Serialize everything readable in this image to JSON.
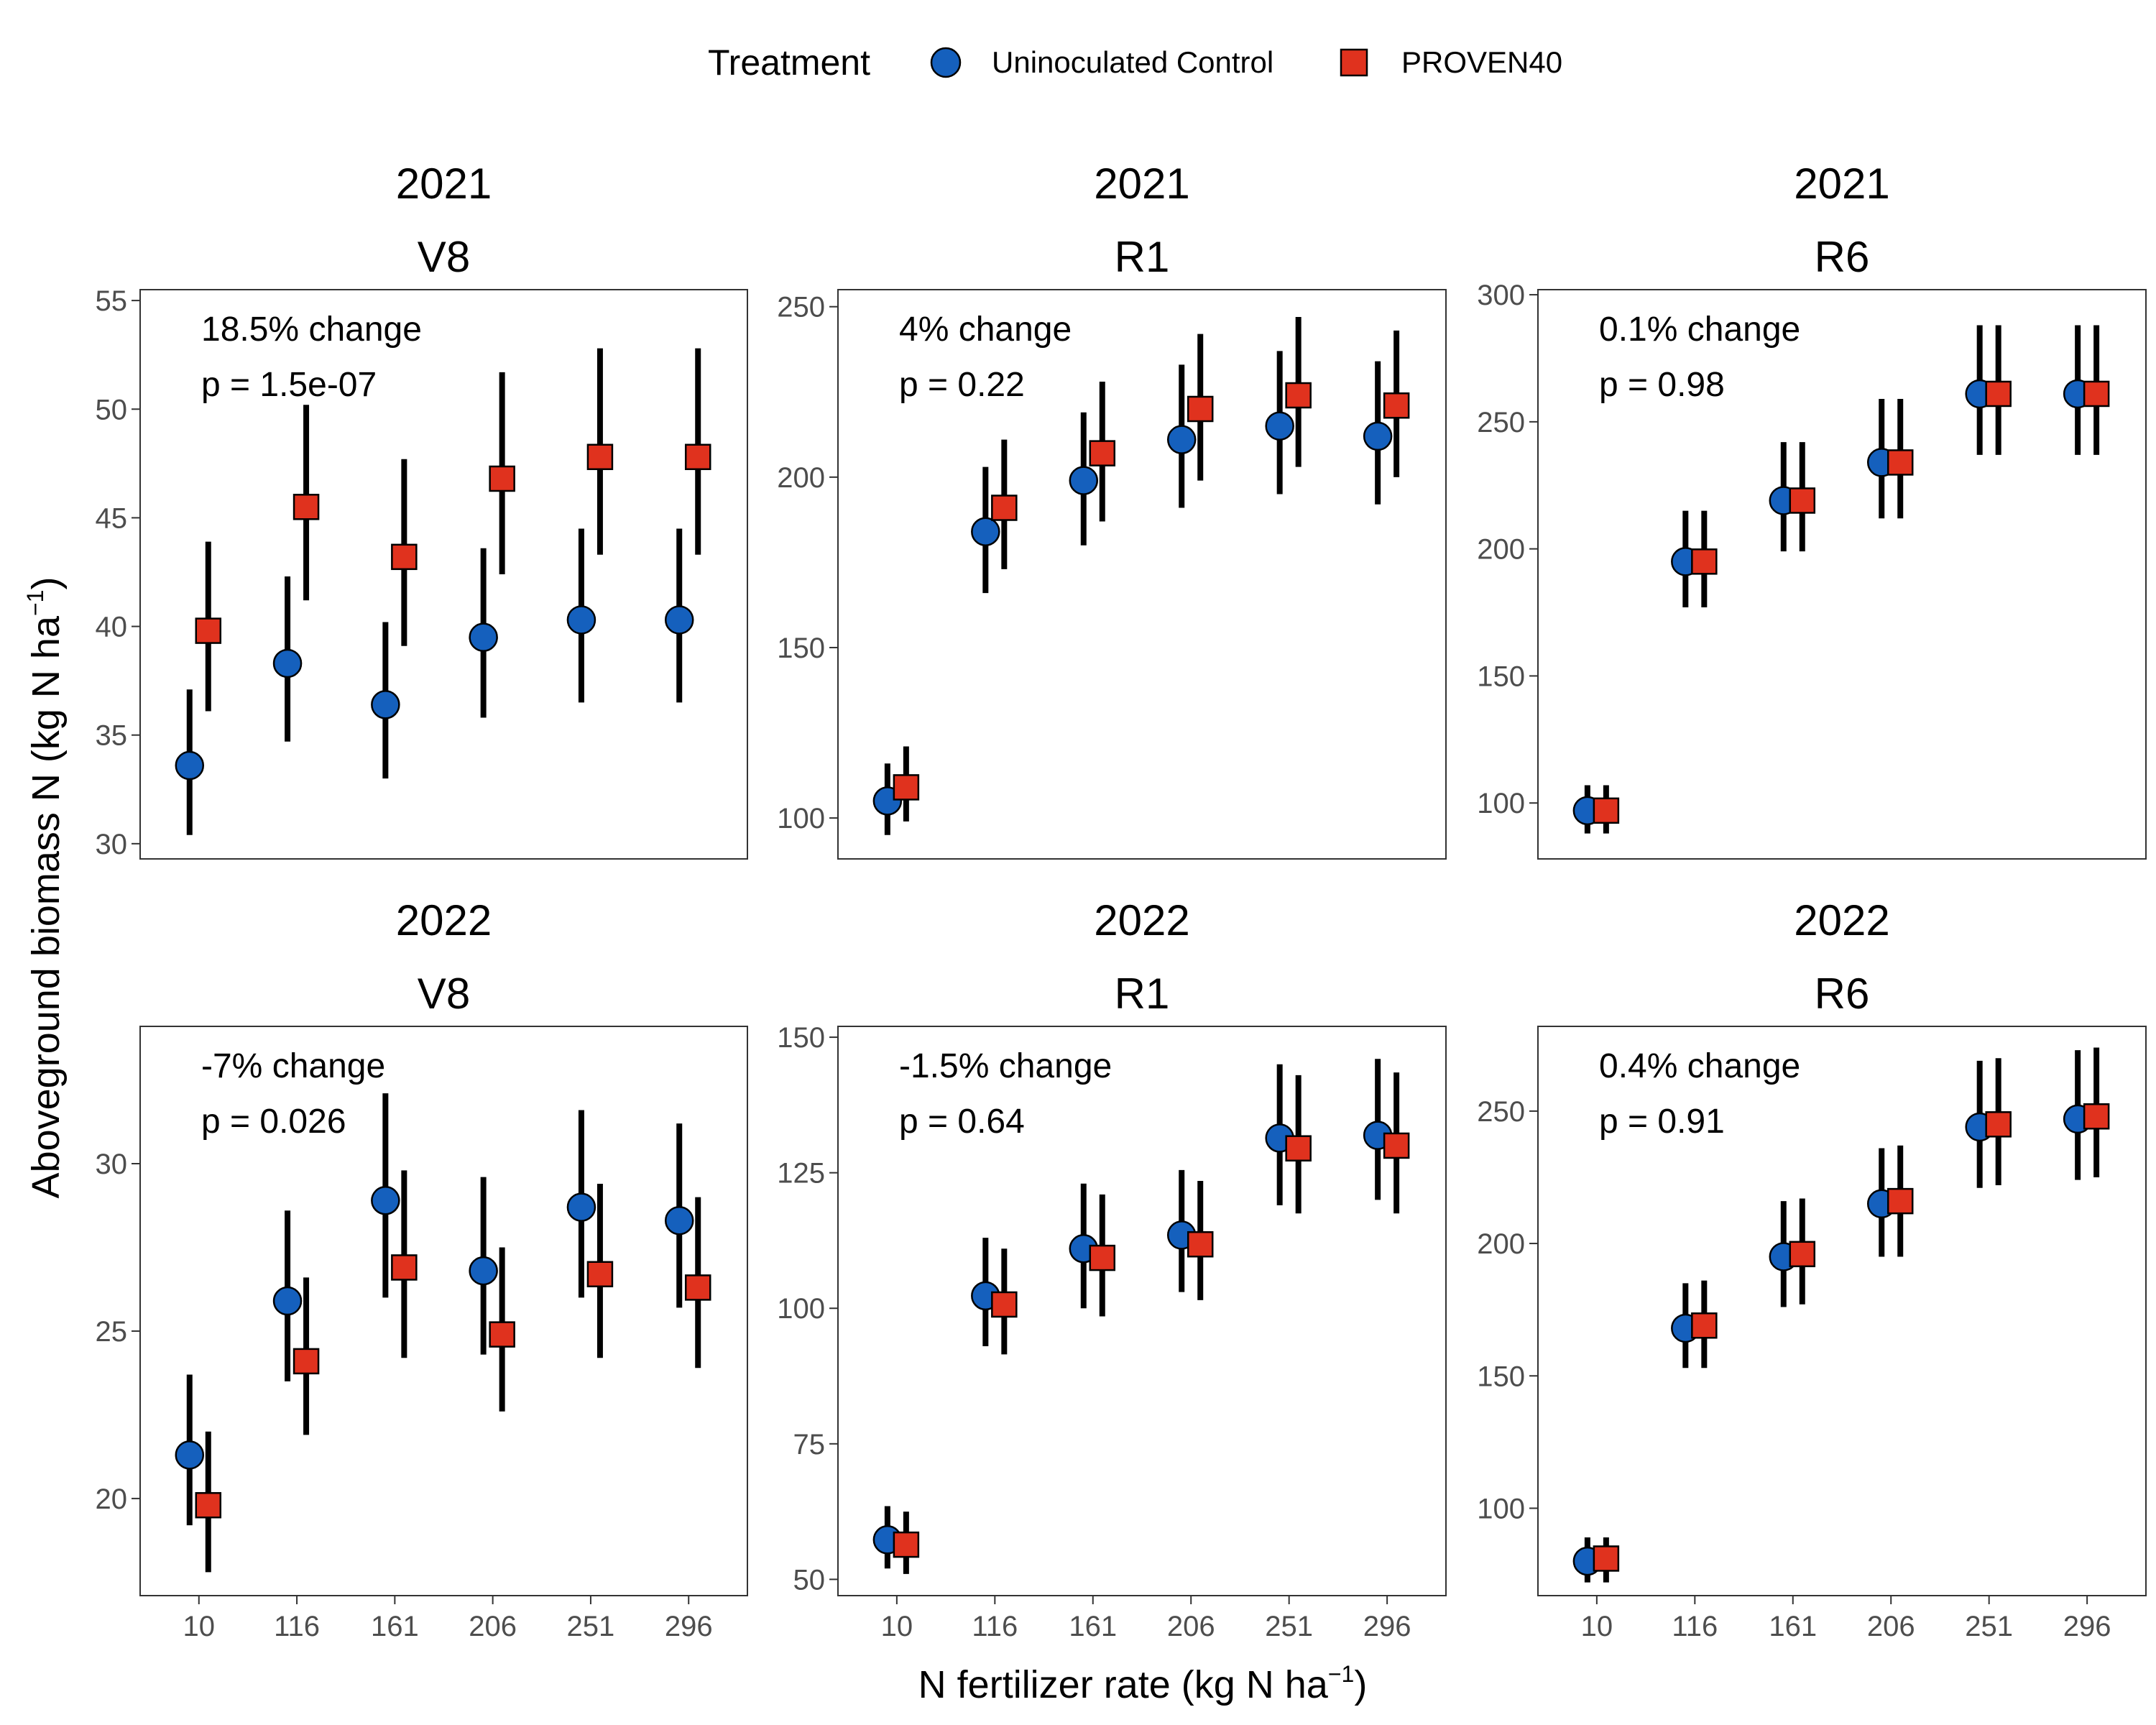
{
  "legend": {
    "title": "Treatment",
    "items": [
      {
        "label": "Uninoculated Control",
        "color": "#1560bd",
        "shape": "circle"
      },
      {
        "label": "PROVEN40",
        "color": "#e0321e",
        "shape": "square"
      }
    ]
  },
  "axes": {
    "x_title": "N fertilizer rate (kg N ha",
    "x_sup": "−1",
    "x_close": ")",
    "y_title": "Aboveground biomass N (kg N  ha",
    "y_sup": "−1",
    "y_close": ")"
  },
  "chart_data": [
    {
      "type": "scatter",
      "year": "2021",
      "stage": "V8",
      "annotation": {
        "change": "18.5% change",
        "p": "p = 1.5e-07"
      },
      "categories": [
        "10",
        "116",
        "161",
        "206",
        "251",
        "296"
      ],
      "ylim": [
        29.3,
        55.5
      ],
      "yticks": [
        30,
        35,
        40,
        45,
        50,
        55
      ],
      "series": [
        {
          "name": "Uninoculated Control",
          "values": [
            33.6,
            38.3,
            36.4,
            39.5,
            40.3,
            40.3
          ],
          "lower": [
            30.4,
            34.7,
            33.0,
            35.8,
            36.5,
            36.5
          ],
          "upper": [
            37.1,
            42.3,
            40.2,
            43.6,
            44.5,
            44.5
          ]
        },
        {
          "name": "PROVEN40",
          "values": [
            39.8,
            45.5,
            43.2,
            46.8,
            47.8,
            47.8
          ],
          "lower": [
            36.1,
            41.2,
            39.1,
            42.4,
            43.3,
            43.3
          ],
          "upper": [
            43.9,
            50.2,
            47.7,
            51.7,
            52.8,
            52.8
          ]
        }
      ]
    },
    {
      "type": "scatter",
      "year": "2021",
      "stage": "R1",
      "annotation": {
        "change": "4% change",
        "p": "p = 0.22"
      },
      "categories": [
        "10",
        "116",
        "161",
        "206",
        "251",
        "296"
      ],
      "ylim": [
        88,
        255
      ],
      "yticks": [
        100,
        150,
        200,
        250
      ],
      "series": [
        {
          "name": "Uninoculated Control",
          "values": [
            105,
            184,
            199,
            211,
            215,
            212
          ],
          "lower": [
            95,
            166,
            180,
            191,
            195,
            192
          ],
          "upper": [
            116,
            203,
            219,
            233,
            237,
            234
          ]
        },
        {
          "name": "PROVEN40",
          "values": [
            109,
            191,
            207,
            220,
            224,
            221
          ],
          "lower": [
            99,
            173,
            187,
            199,
            203,
            200
          ],
          "upper": [
            121,
            211,
            228,
            242,
            247,
            243
          ]
        }
      ]
    },
    {
      "type": "scatter",
      "year": "2021",
      "stage": "R6",
      "annotation": {
        "change": "0.1% change",
        "p": "p = 0.98"
      },
      "categories": [
        "10",
        "116",
        "161",
        "206",
        "251",
        "296"
      ],
      "ylim": [
        78,
        302
      ],
      "yticks": [
        100,
        150,
        200,
        250,
        300
      ],
      "series": [
        {
          "name": "Uninoculated Control",
          "values": [
            97,
            195,
            219,
            234,
            261,
            261
          ],
          "lower": [
            88,
            177,
            199,
            212,
            237,
            237
          ],
          "upper": [
            107,
            215,
            242,
            259,
            288,
            288
          ]
        },
        {
          "name": "PROVEN40",
          "values": [
            97,
            195,
            219,
            234,
            261,
            261
          ],
          "lower": [
            88,
            177,
            199,
            212,
            237,
            237
          ],
          "upper": [
            107,
            215,
            242,
            259,
            288,
            288
          ]
        }
      ]
    },
    {
      "type": "scatter",
      "year": "2022",
      "stage": "V8",
      "annotation": {
        "change": "-7% change",
        "p": "p = 0.026"
      },
      "categories": [
        "10",
        "116",
        "161",
        "206",
        "251",
        "296"
      ],
      "ylim": [
        17.1,
        34.1
      ],
      "yticks": [
        20,
        25,
        30
      ],
      "series": [
        {
          "name": "Uninoculated Control",
          "values": [
            21.3,
            25.9,
            28.9,
            26.8,
            28.7,
            28.3
          ],
          "lower": [
            19.2,
            23.5,
            26.0,
            24.3,
            26.0,
            25.7
          ],
          "upper": [
            23.7,
            28.6,
            32.1,
            29.6,
            31.6,
            31.2
          ]
        },
        {
          "name": "PROVEN40",
          "values": [
            19.8,
            24.1,
            26.9,
            24.9,
            26.7,
            26.3
          ],
          "lower": [
            17.8,
            21.9,
            24.2,
            22.6,
            24.2,
            23.9
          ],
          "upper": [
            22.0,
            26.6,
            29.8,
            27.5,
            29.4,
            29.0
          ]
        }
      ]
    },
    {
      "type": "scatter",
      "year": "2022",
      "stage": "R1",
      "annotation": {
        "change": "-1.5% change",
        "p": "p = 0.64"
      },
      "categories": [
        "10",
        "116",
        "161",
        "206",
        "251",
        "296"
      ],
      "ylim": [
        47,
        152
      ],
      "yticks": [
        50,
        75,
        100,
        125,
        150
      ],
      "series": [
        {
          "name": "Uninoculated Control",
          "values": [
            57.3,
            102.3,
            111.0,
            113.5,
            131.4,
            131.9
          ],
          "lower": [
            52,
            93,
            100,
            103,
            119,
            120
          ],
          "upper": [
            63.5,
            113,
            123,
            125.5,
            145,
            146
          ]
        },
        {
          "name": "PROVEN40",
          "values": [
            56.4,
            100.7,
            109.3,
            111.8,
            129.5,
            130.0
          ],
          "lower": [
            51,
            91.5,
            98.5,
            101.5,
            117.5,
            117.5
          ],
          "upper": [
            62.5,
            111,
            121,
            123.5,
            143,
            143.5
          ]
        }
      ]
    },
    {
      "type": "scatter",
      "year": "2022",
      "stage": "R6",
      "annotation": {
        "change": "0.4% change",
        "p": "p = 0.91"
      },
      "categories": [
        "10",
        "116",
        "161",
        "206",
        "251",
        "296"
      ],
      "ylim": [
        67,
        282
      ],
      "yticks": [
        100,
        150,
        200,
        250
      ],
      "series": [
        {
          "name": "Uninoculated Control",
          "values": [
            80,
            168,
            195,
            215,
            244,
            247
          ],
          "lower": [
            72,
            153,
            176,
            195,
            221,
            224
          ],
          "upper": [
            89,
            185,
            216,
            236,
            269,
            273
          ]
        },
        {
          "name": "PROVEN40",
          "values": [
            81,
            169,
            196,
            216,
            245,
            248
          ],
          "lower": [
            72,
            153,
            177,
            195,
            222,
            225
          ],
          "upper": [
            89,
            186,
            217,
            237,
            270,
            274
          ]
        }
      ]
    }
  ]
}
